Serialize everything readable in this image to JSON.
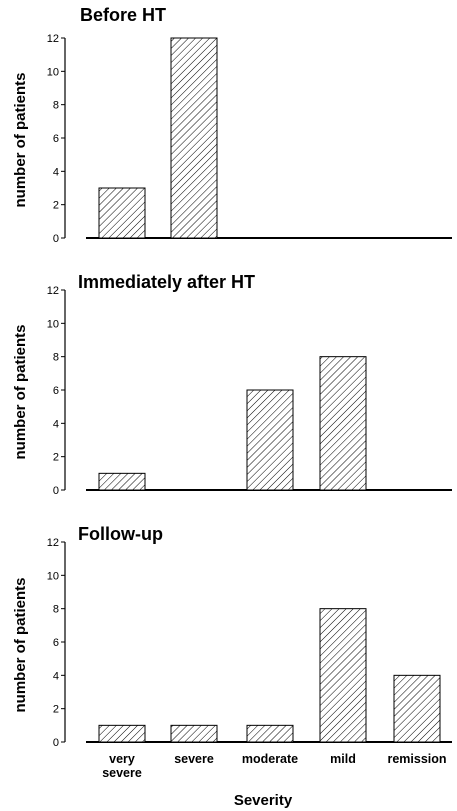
{
  "chart_data": [
    {
      "type": "bar",
      "title": "Before HT",
      "ylabel": "number of patients",
      "xlabel": "",
      "categories": [
        "very severe",
        "severe",
        "moderate",
        "mild",
        "remission"
      ],
      "values": [
        3,
        12,
        0,
        0,
        0
      ],
      "ylim": [
        0,
        12
      ],
      "yticks": [
        "0",
        "2",
        "4",
        "6",
        "8",
        "10",
        "12"
      ],
      "grid": false
    },
    {
      "type": "bar",
      "title": "Immediately after HT",
      "ylabel": "number of patients",
      "xlabel": "",
      "categories": [
        "very severe",
        "severe",
        "moderate",
        "mild",
        "remission"
      ],
      "values": [
        1,
        0,
        6,
        8,
        0
      ],
      "ylim": [
        0,
        12
      ],
      "yticks": [
        "0",
        "2",
        "4",
        "6",
        "8",
        "10",
        "12"
      ],
      "grid": false
    },
    {
      "type": "bar",
      "title": "Follow-up",
      "ylabel": "number of patients",
      "xlabel": "Severity",
      "categories": [
        "very severe",
        "severe",
        "moderate",
        "mild",
        "remission"
      ],
      "category_labels": [
        [
          "very",
          "severe"
        ],
        [
          "severe"
        ],
        [
          "moderate"
        ],
        [
          "mild"
        ],
        [
          "remission"
        ]
      ],
      "values": [
        1,
        1,
        1,
        8,
        4
      ],
      "ylim": [
        0,
        12
      ],
      "yticks": [
        "0",
        "2",
        "4",
        "6",
        "8",
        "10",
        "12"
      ],
      "grid": false
    }
  ]
}
